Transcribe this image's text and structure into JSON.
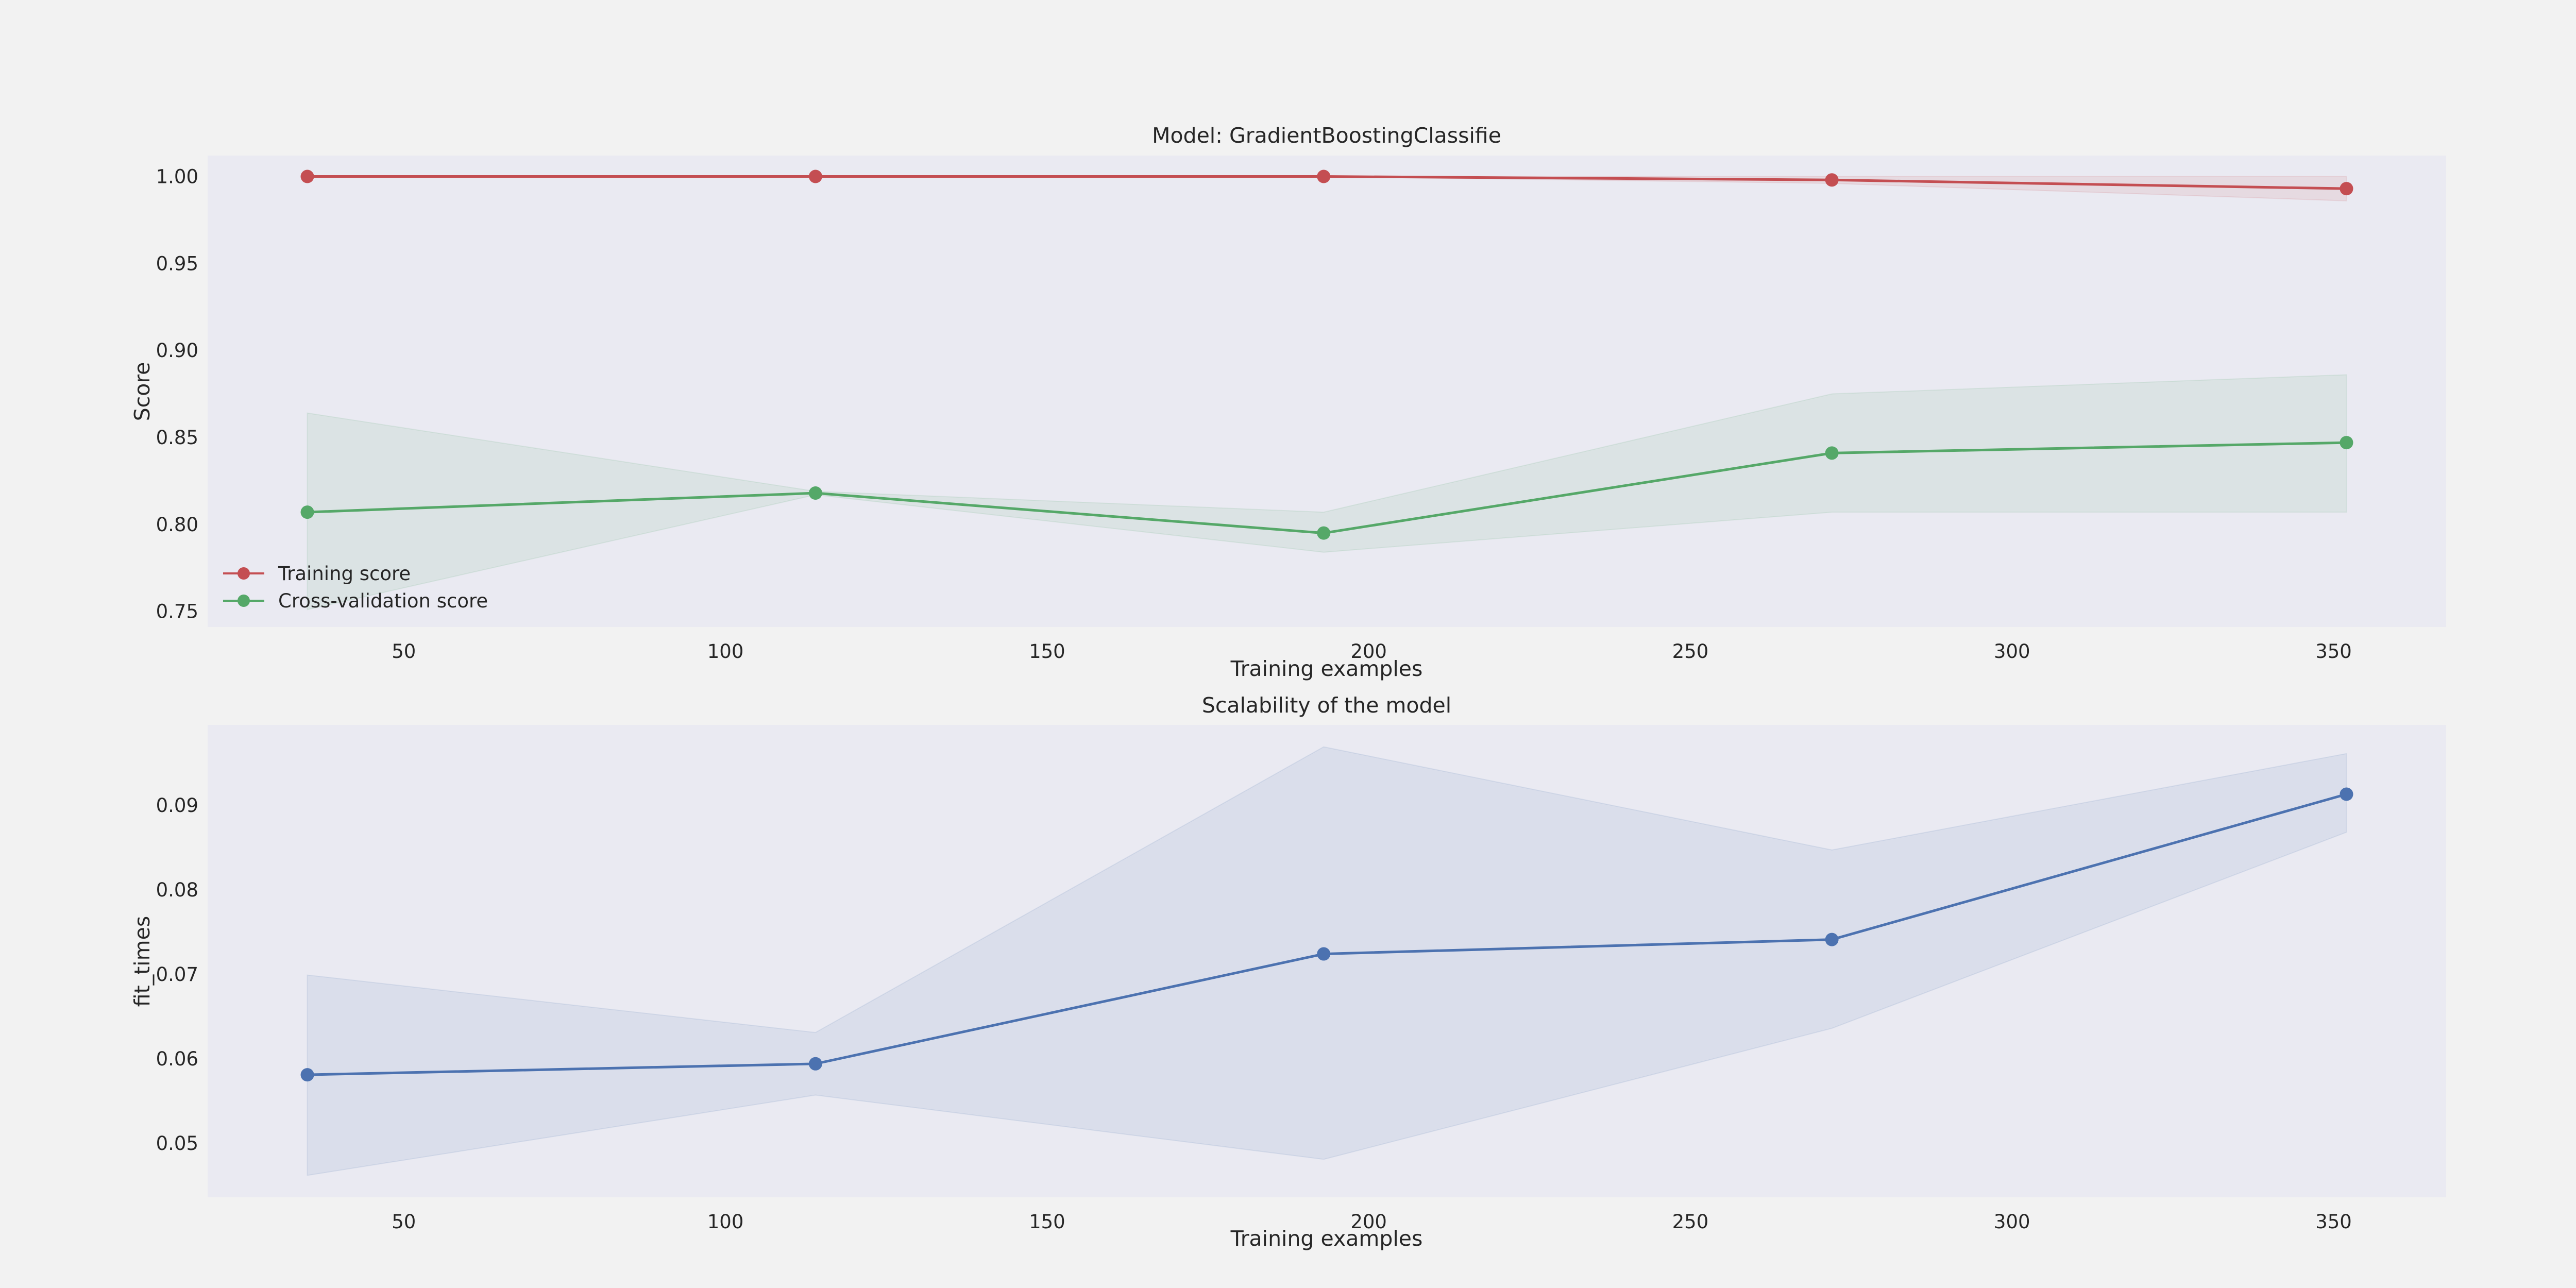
{
  "colors": {
    "figure_bg": "#f2f2f2",
    "axes_bg": "#eaeaf2",
    "training": "#c44e52",
    "cross_validation": "#55a868",
    "fit_times": "#4c72b0"
  },
  "chart_data": [
    {
      "type": "line",
      "title": "Model: GradientBoostingClassifie",
      "xlabel": "Training examples",
      "ylabel": "Score",
      "xlim": [
        19.5,
        367.5
      ],
      "ylim": [
        0.741,
        1.012
      ],
      "x_ticks": [
        50,
        100,
        150,
        200,
        250,
        300,
        350
      ],
      "y_ticks": [
        0.75,
        0.8,
        0.85,
        0.9,
        0.95,
        1.0
      ],
      "grid": false,
      "legend": "lower-left",
      "x": [
        35,
        114,
        193,
        272,
        352
      ],
      "series": [
        {
          "name": "Training score",
          "color": "#c44e52",
          "values": [
            1.0,
            1.0,
            1.0,
            0.998,
            0.993
          ],
          "band_low": [
            1.0,
            1.0,
            1.0,
            0.996,
            0.986
          ],
          "band_high": [
            1.0,
            1.0,
            1.0,
            1.0,
            1.0
          ]
        },
        {
          "name": "Cross-validation score",
          "color": "#55a868",
          "values": [
            0.807,
            0.818,
            0.795,
            0.841,
            0.847
          ],
          "band_low": [
            0.751,
            0.817,
            0.784,
            0.807,
            0.807
          ],
          "band_high": [
            0.864,
            0.819,
            0.807,
            0.875,
            0.886
          ]
        }
      ]
    },
    {
      "type": "line",
      "title": "Scalability of the model",
      "xlabel": "Training examples",
      "ylabel": "fit_times",
      "xlim": [
        19.5,
        367.5
      ],
      "ylim": [
        0.0436,
        0.0995
      ],
      "x_ticks": [
        50,
        100,
        150,
        200,
        250,
        300,
        350
      ],
      "y_ticks": [
        0.05,
        0.06,
        0.07,
        0.08,
        0.09
      ],
      "grid": false,
      "x": [
        35,
        114,
        193,
        272,
        352
      ],
      "series": [
        {
          "color": "#4c72b0",
          "values": [
            0.0581,
            0.0594,
            0.0724,
            0.0741,
            0.0913
          ],
          "band_low": [
            0.0462,
            0.0557,
            0.0481,
            0.0636,
            0.0868
          ],
          "band_high": [
            0.0699,
            0.0631,
            0.0969,
            0.0847,
            0.0961
          ]
        }
      ]
    }
  ]
}
